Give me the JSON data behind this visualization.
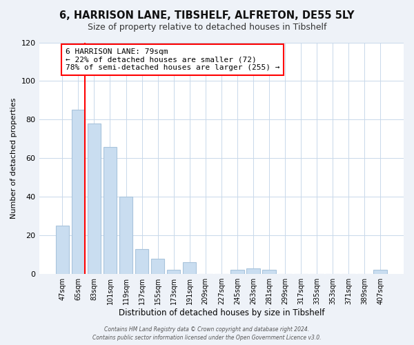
{
  "title": "6, HARRISON LANE, TIBSHELF, ALFRETON, DE55 5LY",
  "subtitle": "Size of property relative to detached houses in Tibshelf",
  "xlabel": "Distribution of detached houses by size in Tibshelf",
  "ylabel": "Number of detached properties",
  "bar_labels": [
    "47sqm",
    "65sqm",
    "83sqm",
    "101sqm",
    "119sqm",
    "137sqm",
    "155sqm",
    "173sqm",
    "191sqm",
    "209sqm",
    "227sqm",
    "245sqm",
    "263sqm",
    "281sqm",
    "299sqm",
    "317sqm",
    "335sqm",
    "353sqm",
    "371sqm",
    "389sqm",
    "407sqm"
  ],
  "bar_values": [
    25,
    85,
    78,
    66,
    40,
    13,
    8,
    2,
    6,
    0,
    0,
    2,
    3,
    2,
    0,
    0,
    0,
    0,
    0,
    0,
    2
  ],
  "bar_color": "#c9ddf0",
  "bar_edge_color": "#a8c4dc",
  "vline_color": "red",
  "ylim": [
    0,
    120
  ],
  "yticks": [
    0,
    20,
    40,
    60,
    80,
    100,
    120
  ],
  "annotation_title": "6 HARRISON LANE: 79sqm",
  "annotation_line1": "← 22% of detached houses are smaller (72)",
  "annotation_line2": "78% of semi-detached houses are larger (255) →",
  "annotation_box_color": "white",
  "annotation_box_edgecolor": "red",
  "footer_line1": "Contains HM Land Registry data © Crown copyright and database right 2024.",
  "footer_line2": "Contains public sector information licensed under the Open Government Licence v3.0.",
  "background_color": "#eef2f8",
  "plot_background_color": "white",
  "grid_color": "#c8d8ea"
}
